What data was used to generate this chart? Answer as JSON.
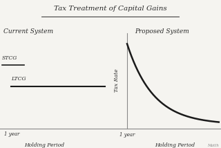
{
  "title": "Tax Treatment of Capital Gains",
  "bg_color": "#f5f4f0",
  "left_title": "Current System",
  "right_title": "Proposed System",
  "stcg_label": "STCG",
  "ltcg_label": "LTCG",
  "tax_rate_label": "Tax Rate",
  "holding_period_label": "Holding Period",
  "one_year_label": "1 year",
  "watermark": "Matth",
  "line_color": "#1a1a1a",
  "axis_color": "#888888",
  "text_color": "#2a2a2a"
}
